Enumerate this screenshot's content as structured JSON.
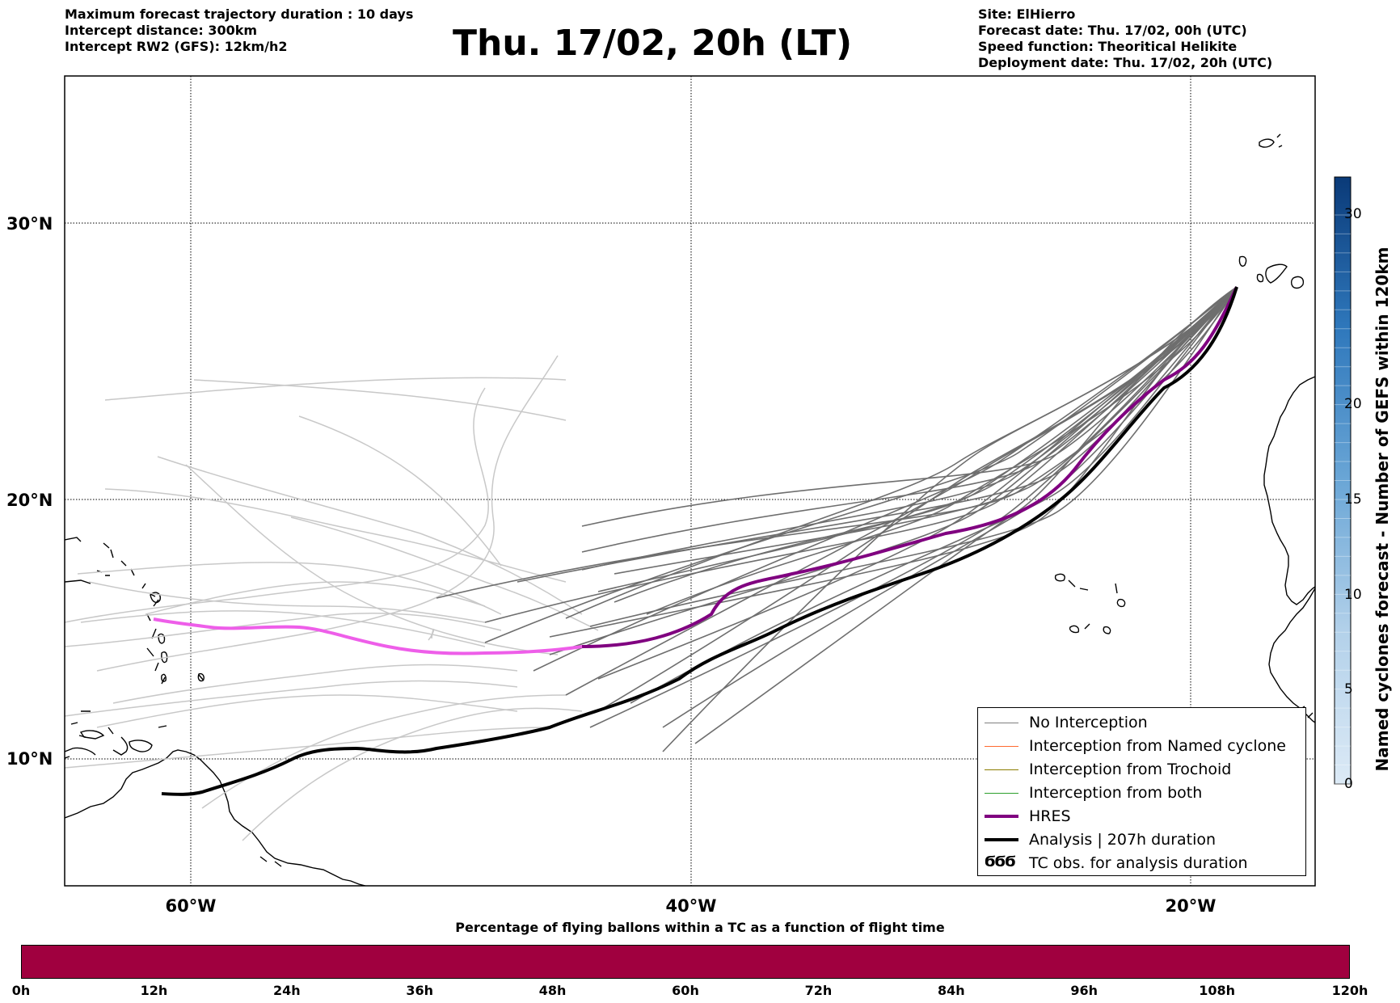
{
  "header": {
    "left": [
      "Maximum forecast trajectory duration : 10 days",
      "Intercept distance: 300km",
      "Intercept RW2 (GFS):  12km/h2"
    ],
    "title": "Thu. 17/02, 20h (LT)",
    "right": [
      "Site: ElHierro",
      "Forecast date: Thu. 17/02, 00h (UTC)",
      "Speed function: Theoritical Helikite",
      "Deployment date: Thu. 17/02, 20h (UTC)"
    ]
  },
  "map": {
    "lon_range": [
      -65,
      15
    ],
    "lat_range": [
      5,
      35.3
    ],
    "lat_ticks": [
      "30°N",
      "20°N",
      "10°N"
    ],
    "lon_ticks": [
      "60°W",
      "40°W",
      "20°W"
    ],
    "land_color": "#ffffff",
    "coast_color": "#000000",
    "grid": true
  },
  "legend": [
    {
      "label": "No Interception",
      "color": "#808080",
      "width": 1.5
    },
    {
      "label": "Interception from Named cyclone",
      "color": "#ff6a30",
      "width": 1.5
    },
    {
      "label": "Interception from Trochoid",
      "color": "#8b7d00",
      "width": 1.5
    },
    {
      "label": "Interception from both",
      "color": "#2ca02c",
      "width": 1.5
    },
    {
      "label": "HRES",
      "color": "#800080",
      "width": 4
    },
    {
      "label": "Analysis | 207h duration",
      "color": "#000000",
      "width": 4
    },
    {
      "label": "TC obs. for analysis duration",
      "icon": "ϬϬϬ",
      "color": "#000000"
    }
  ],
  "colorbar": {
    "label": "Named cyclones forecast - Number of GEFS within 120km",
    "ticks": [
      "0",
      "5",
      "10",
      "15",
      "20",
      "30"
    ],
    "colors": [
      "#dceaf6",
      "#0a3a78"
    ]
  },
  "timeline": {
    "title": "Percentage of flying ballons within a TC as a function of flight time",
    "ticks": [
      "0h",
      "12h",
      "24h",
      "36h",
      "48h",
      "60h",
      "72h",
      "84h",
      "96h",
      "108h",
      "120h"
    ],
    "color": "#a0003f"
  }
}
